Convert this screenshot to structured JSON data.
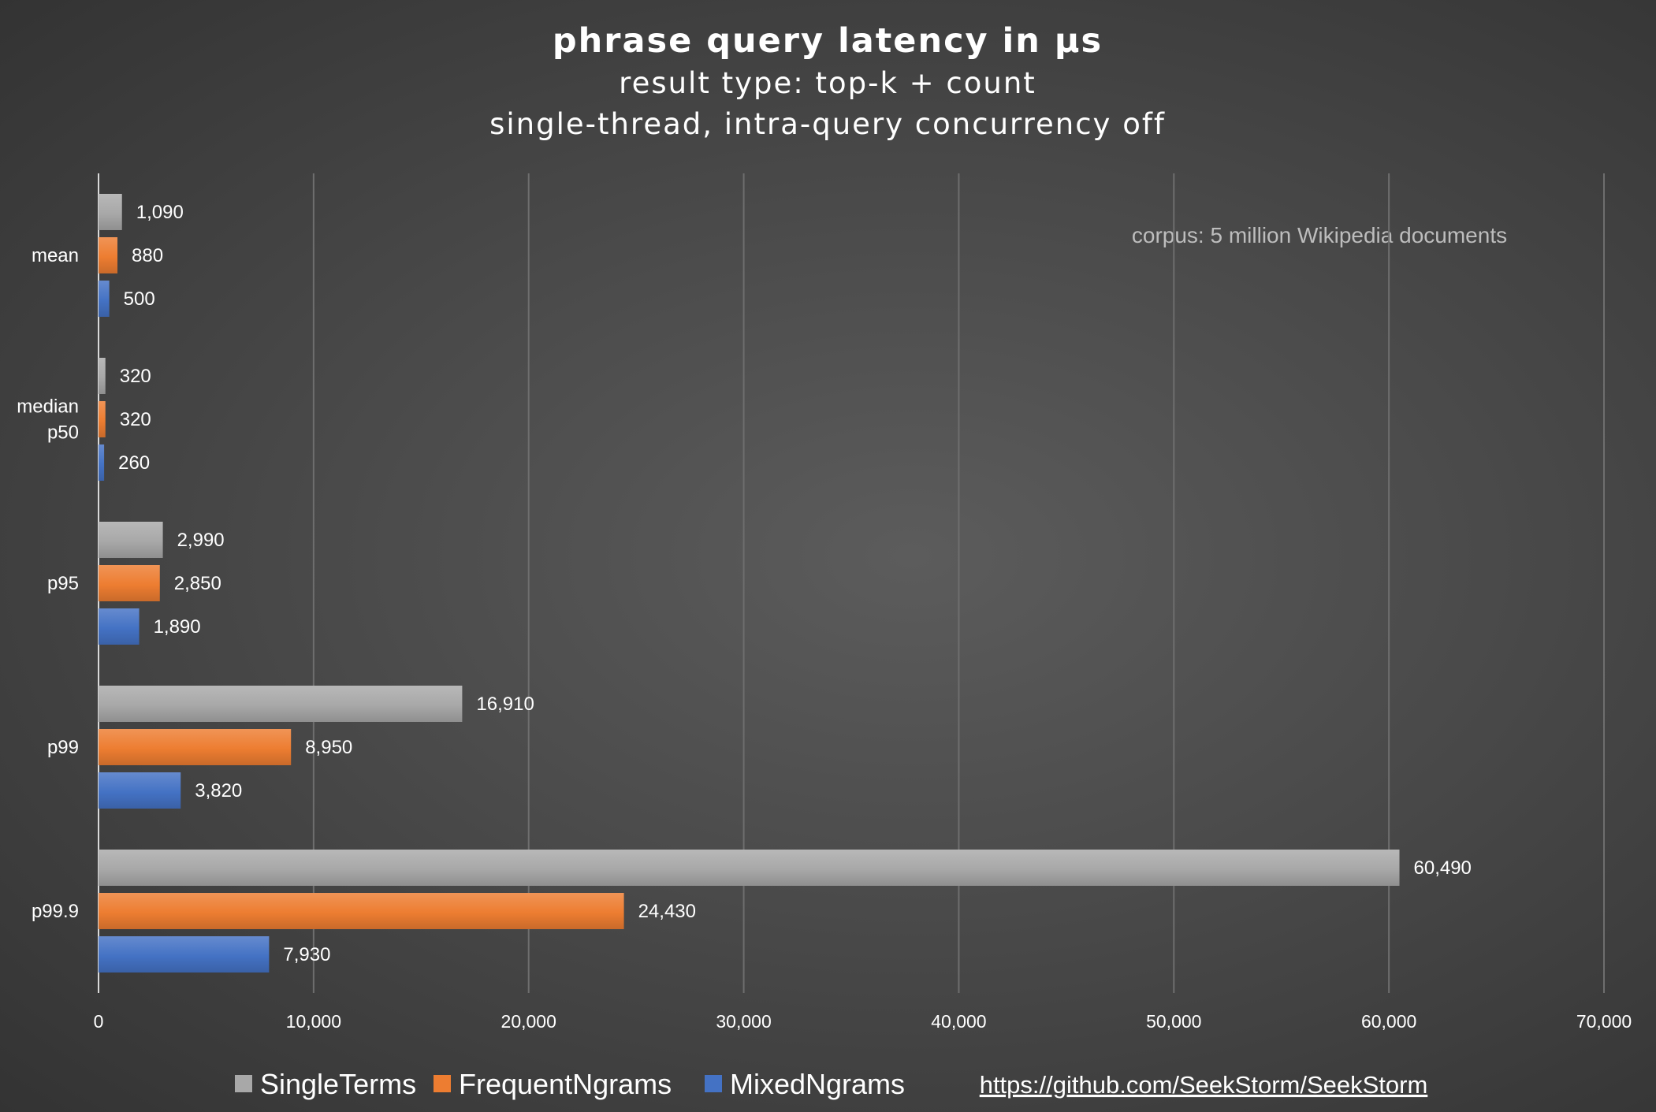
{
  "chart_data": {
    "type": "bar",
    "orientation": "horizontal",
    "title": "phrase query latency in µs",
    "subtitle_lines": [
      "result type: top-k + count",
      "single-thread, intra-query concurrency off"
    ],
    "annotation": "corpus: 5 million Wikipedia documents",
    "link": "https://github.com/SeekStorm/SeekStorm",
    "categories": [
      {
        "label_lines": [
          "mean"
        ]
      },
      {
        "label_lines": [
          "median",
          "p50"
        ]
      },
      {
        "label_lines": [
          "p95"
        ]
      },
      {
        "label_lines": [
          "p99"
        ]
      },
      {
        "label_lines": [
          "p99.9"
        ]
      }
    ],
    "series": [
      {
        "name": "SingleTerms",
        "color": "#a8a8a8",
        "values": [
          1090,
          320,
          2990,
          16910,
          60490
        ]
      },
      {
        "name": "FrequentNgrams",
        "color": "#ed7d31",
        "values": [
          880,
          320,
          2850,
          8950,
          24430
        ]
      },
      {
        "name": "MixedNgrams",
        "color": "#4472c4",
        "values": [
          500,
          260,
          1890,
          3820,
          7930
        ]
      }
    ],
    "xlim": [
      0,
      70000
    ],
    "xticks": [
      0,
      10000,
      20000,
      30000,
      40000,
      50000,
      60000,
      70000
    ],
    "grid": true,
    "legend_position": "bottom",
    "value_format": "thousands-comma"
  }
}
